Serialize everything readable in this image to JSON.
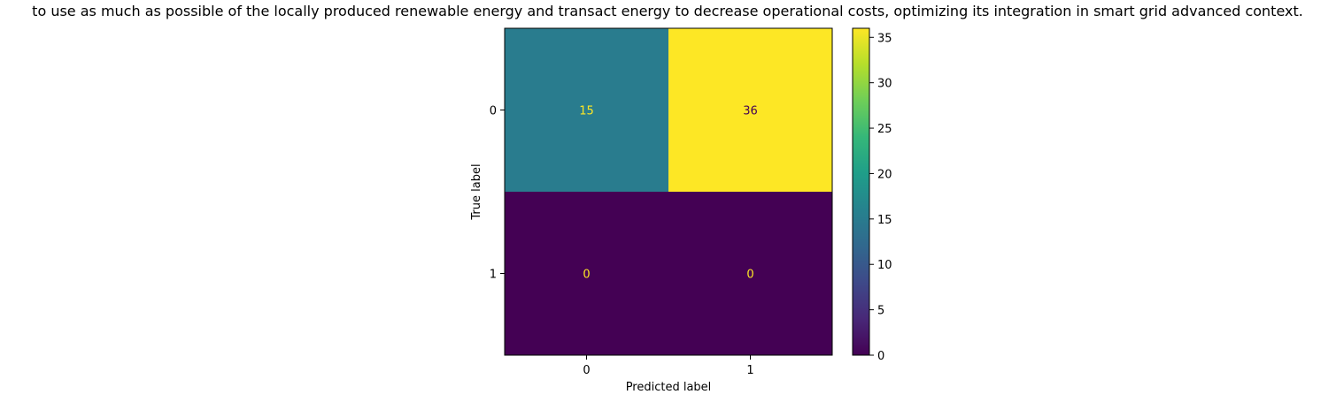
{
  "chart_data": {
    "type": "heatmap",
    "title": "to use as much as possible of the locally produced renewable energy and transact energy to decrease operational costs, optimizing its integration in smart grid advanced context.",
    "xlabel": "Predicted label",
    "ylabel": "True label",
    "x_categories": [
      "0",
      "1"
    ],
    "y_categories": [
      "0",
      "1"
    ],
    "matrix": [
      [
        15,
        36
      ],
      [
        0,
        0
      ]
    ],
    "cell_labels": [
      [
        "15",
        "36"
      ],
      [
        "0",
        "0"
      ]
    ],
    "colorscale": "viridis",
    "colorbar": {
      "range": [
        0,
        36
      ],
      "ticks": [
        0,
        5,
        10,
        15,
        20,
        25,
        30,
        35
      ],
      "tick_labels": [
        "0",
        "5",
        "10",
        "15",
        "20",
        "25",
        "30",
        "35"
      ]
    },
    "colors": {
      "cell_15": "#277f8e",
      "cell_36": "#fde725",
      "cell_0": "#440154",
      "text_on_dark": "#fde725",
      "text_on_light": "#440154"
    }
  }
}
